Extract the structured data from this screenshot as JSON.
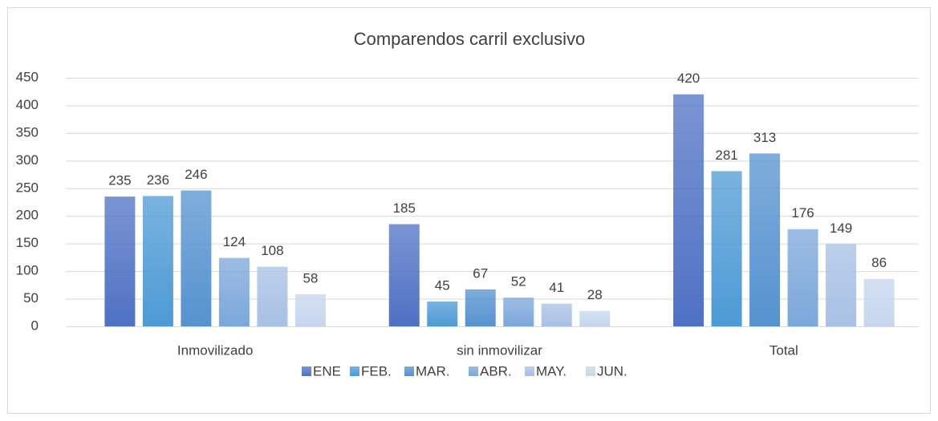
{
  "chart_data": {
    "type": "bar",
    "title": "Comparendos carril exclusivo",
    "categories": [
      "Inmovilizado",
      "sin inmovilizar",
      "Total"
    ],
    "series": [
      {
        "name": "ENE",
        "color": "#4f71c4",
        "values": [
          235,
          185,
          420
        ]
      },
      {
        "name": "FEB.",
        "color": "#4d9ad5",
        "values": [
          236,
          45,
          281
        ]
      },
      {
        "name": "MAR.",
        "color": "#5592cf",
        "values": [
          246,
          67,
          313
        ]
      },
      {
        "name": "ABR.",
        "color": "#7ba7da",
        "values": [
          124,
          52,
          176
        ]
      },
      {
        "name": "MAY.",
        "color": "#a7c0e4",
        "values": [
          108,
          41,
          149
        ]
      },
      {
        "name": "JUN.",
        "color": "#c6d6ee",
        "values": [
          58,
          28,
          86
        ]
      }
    ],
    "ylim": [
      0,
      450
    ],
    "yticks": [
      0,
      50,
      100,
      150,
      200,
      250,
      300,
      350,
      400,
      450
    ],
    "grid": true,
    "legend": "bottom"
  }
}
